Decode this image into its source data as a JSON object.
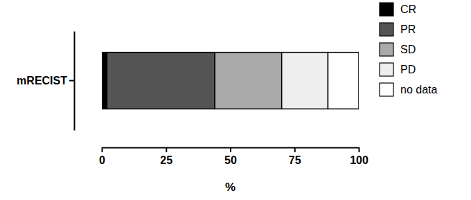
{
  "chart_data": {
    "type": "bar",
    "orientation": "horizontal",
    "stacked": true,
    "categories": [
      "mRECIST"
    ],
    "series": [
      {
        "name": "CR",
        "color": "#000000",
        "values": [
          2
        ]
      },
      {
        "name": "PR",
        "color": "#555555",
        "values": [
          42
        ]
      },
      {
        "name": "SD",
        "color": "#aaaaaa",
        "values": [
          26
        ]
      },
      {
        "name": "PD",
        "color": "#eeeeee",
        "values": [
          18
        ]
      },
      {
        "name": "no data",
        "color": "#ffffff",
        "values": [
          12
        ]
      }
    ],
    "xlim": [
      0,
      100
    ],
    "xticks": [
      0,
      25,
      50,
      75,
      100
    ],
    "x_label": "%",
    "legend": "right",
    "grid": false
  }
}
